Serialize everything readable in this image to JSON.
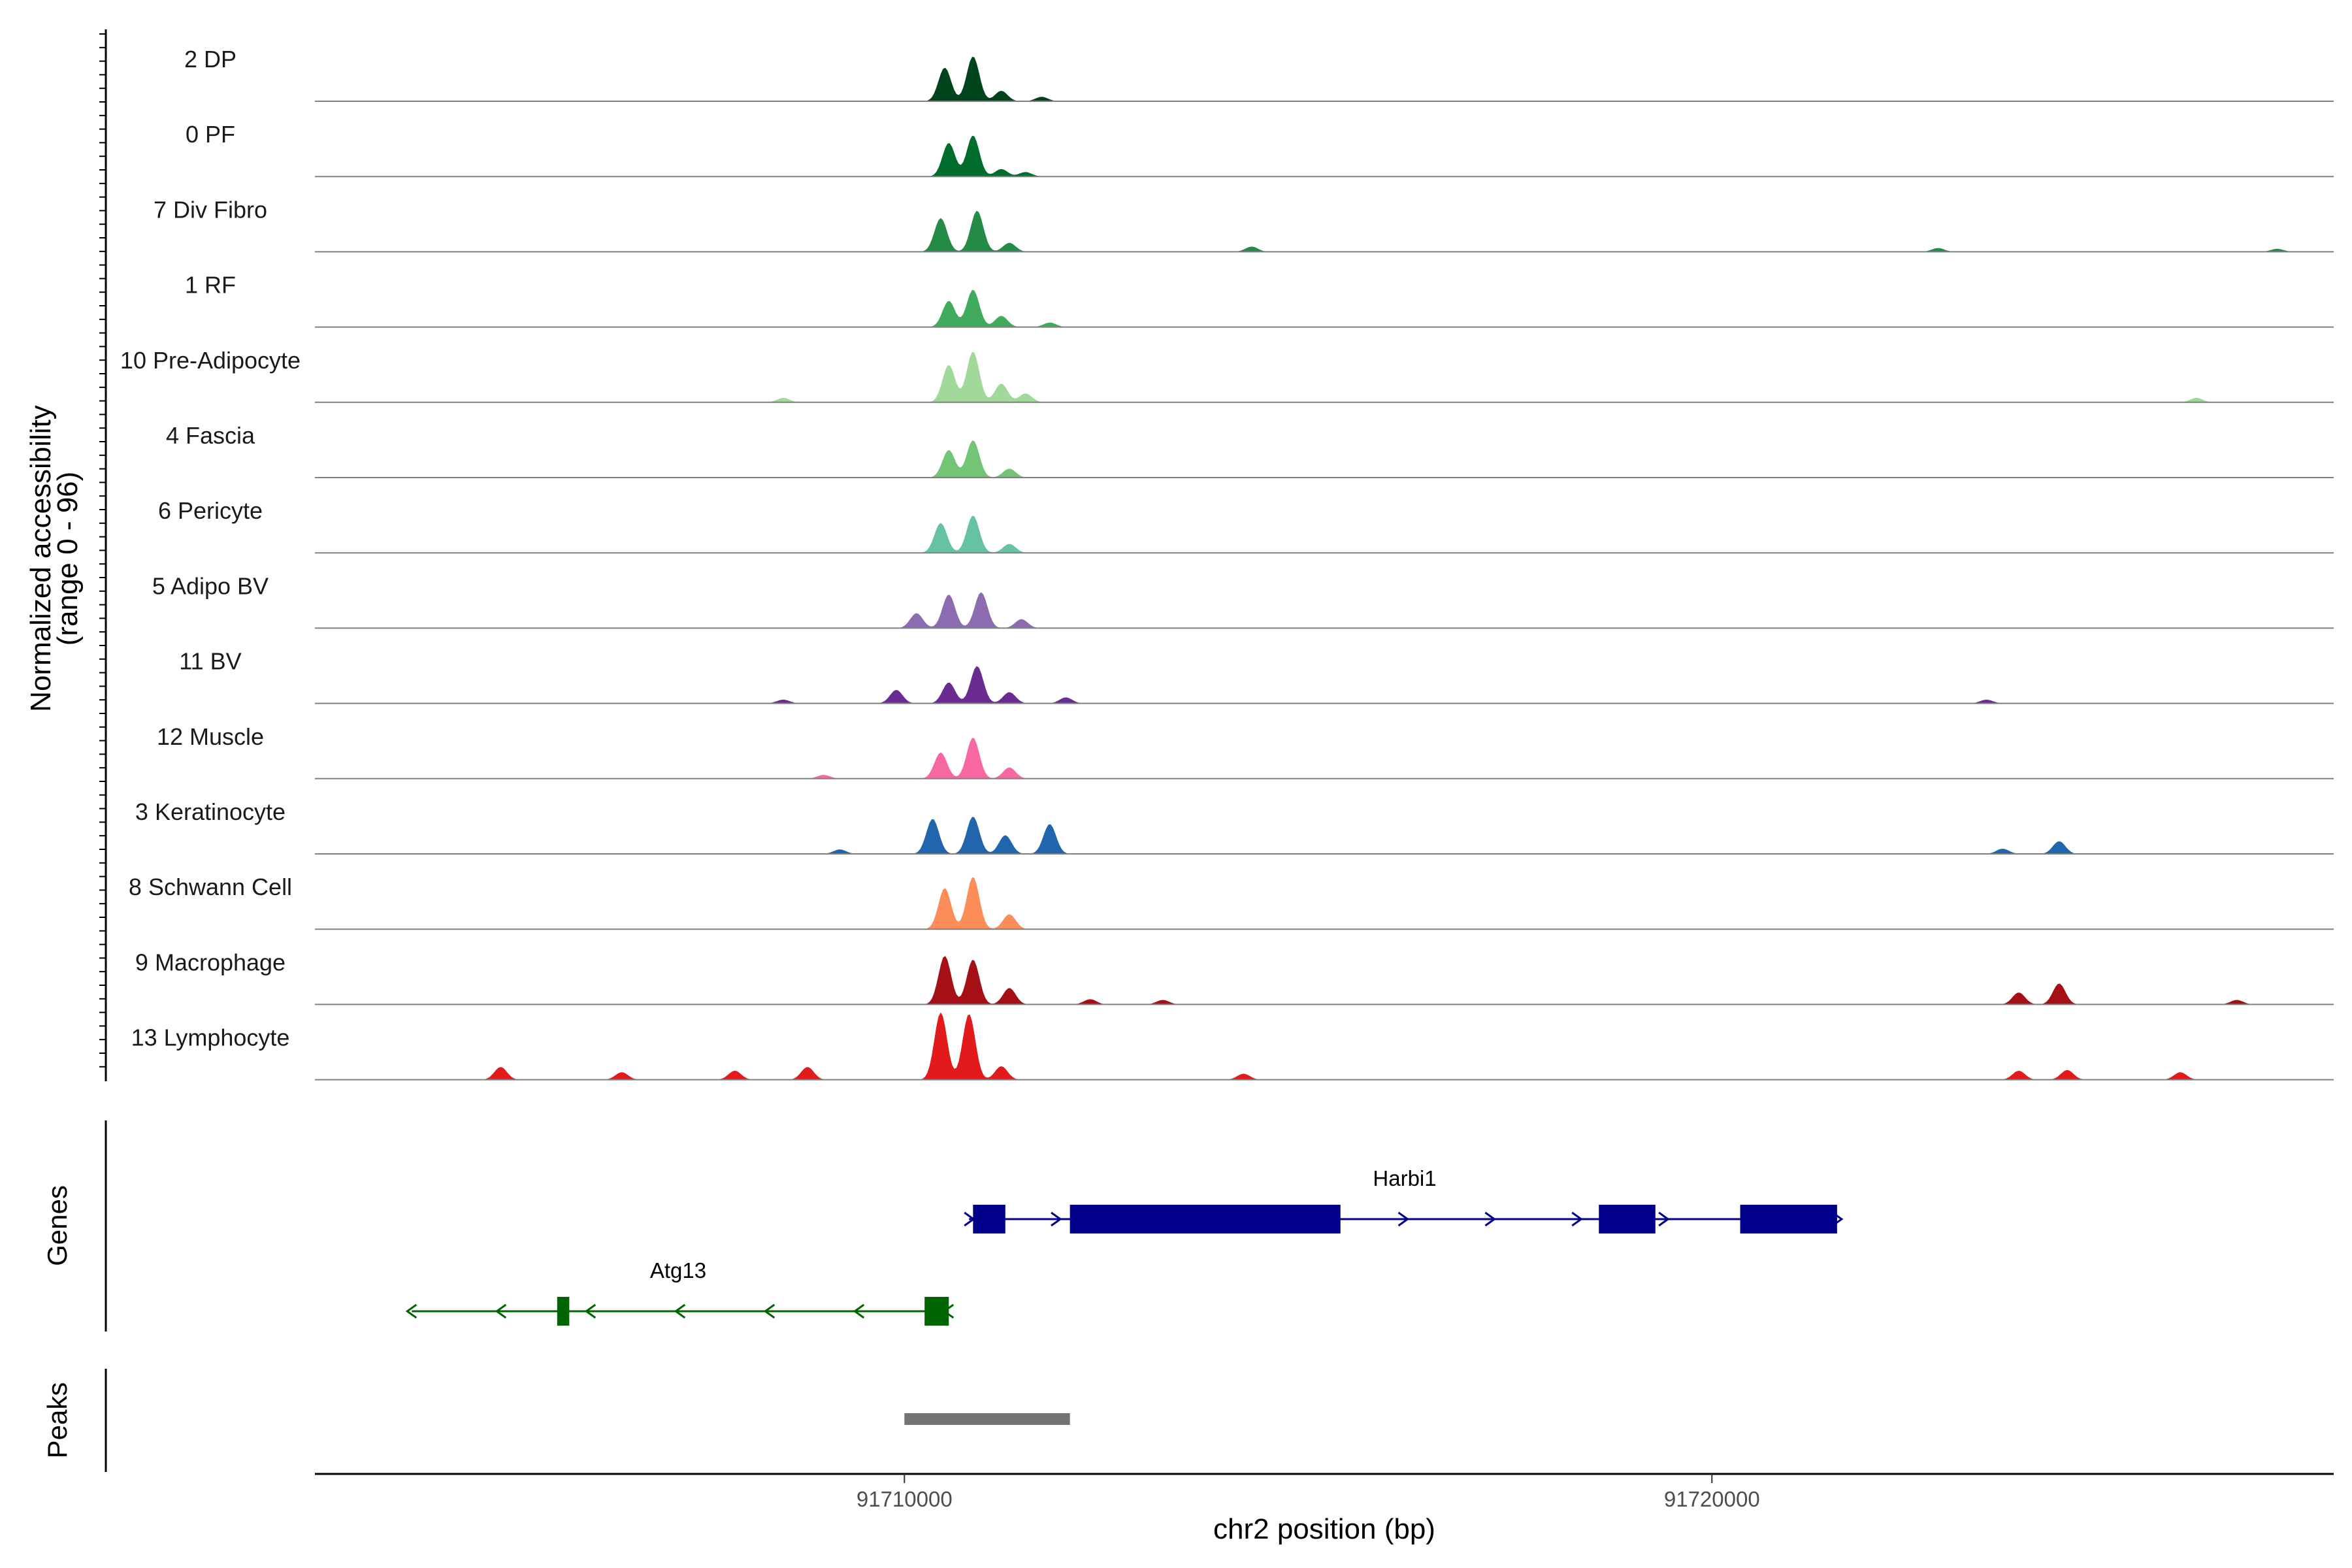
{
  "chart_data": {
    "type": "area",
    "title": "",
    "region": "chr2",
    "xlabel": "chr2 position (bp)",
    "ylabel": "Normalized accessibility",
    "ylabel_range": "(range 0 - 96)",
    "ylim": [
      0,
      96
    ],
    "xlim": [
      91702700,
      91727700
    ],
    "xticks": [
      91710000,
      91720000
    ],
    "xtick_labels": [
      "91710000",
      "91720000"
    ],
    "panel_labels": {
      "genes": "Genes",
      "peaks": "Peaks"
    },
    "tracks": [
      {
        "name": "2 DP",
        "color": "#00441b",
        "peaks": [
          [
            91710500,
            45
          ],
          [
            91710850,
            60
          ],
          [
            91711200,
            14
          ],
          [
            91711700,
            6
          ]
        ]
      },
      {
        "name": "0 PF",
        "color": "#006d2c",
        "peaks": [
          [
            91710550,
            45
          ],
          [
            91710850,
            55
          ],
          [
            91711200,
            10
          ],
          [
            91711500,
            6
          ]
        ]
      },
      {
        "name": "7 Div Fibro",
        "color": "#238b45",
        "peaks": [
          [
            91710450,
            45
          ],
          [
            91710900,
            55
          ],
          [
            91711300,
            12
          ],
          [
            91714300,
            7
          ],
          [
            91722800,
            5
          ],
          [
            91727000,
            4
          ]
        ]
      },
      {
        "name": "1 RF",
        "color": "#41ab5d",
        "peaks": [
          [
            91710550,
            35
          ],
          [
            91710850,
            50
          ],
          [
            91711200,
            15
          ],
          [
            91711800,
            6
          ]
        ]
      },
      {
        "name": "10 Pre-Adipocyte",
        "color": "#a1d99b",
        "peaks": [
          [
            91710550,
            50
          ],
          [
            91710850,
            68
          ],
          [
            91711200,
            25
          ],
          [
            91711500,
            12
          ],
          [
            91708500,
            6
          ],
          [
            91726000,
            6
          ]
        ]
      },
      {
        "name": "4 Fascia",
        "color": "#74c476",
        "peaks": [
          [
            91710550,
            37
          ],
          [
            91710850,
            50
          ],
          [
            91711300,
            12
          ]
        ]
      },
      {
        "name": "6 Pericyte",
        "color": "#66c2a4",
        "peaks": [
          [
            91710450,
            40
          ],
          [
            91710850,
            50
          ],
          [
            91711300,
            12
          ]
        ]
      },
      {
        "name": "5 Adipo BV",
        "color": "#8c6bb1",
        "peaks": [
          [
            91710150,
            20
          ],
          [
            91710550,
            45
          ],
          [
            91710950,
            48
          ],
          [
            91711450,
            12
          ]
        ]
      },
      {
        "name": "11 BV",
        "color": "#6a2c91",
        "peaks": [
          [
            91709900,
            18
          ],
          [
            91710550,
            28
          ],
          [
            91710900,
            50
          ],
          [
            91711300,
            15
          ],
          [
            91712000,
            8
          ],
          [
            91708500,
            5
          ],
          [
            91723400,
            5
          ]
        ]
      },
      {
        "name": "12 Muscle",
        "color": "#f768a1",
        "peaks": [
          [
            91710450,
            35
          ],
          [
            91710850,
            55
          ],
          [
            91711300,
            15
          ],
          [
            91709000,
            5
          ]
        ]
      },
      {
        "name": "3 Keratinocyte",
        "color": "#2166ac",
        "peaks": [
          [
            91710350,
            47
          ],
          [
            91710850,
            50
          ],
          [
            91711250,
            25
          ],
          [
            91711800,
            40
          ],
          [
            91709200,
            6
          ],
          [
            91723600,
            7
          ],
          [
            91724300,
            17
          ]
        ]
      },
      {
        "name": "8 Schwann Cell",
        "color": "#fc8d59",
        "peaks": [
          [
            91710500,
            55
          ],
          [
            91710850,
            70
          ],
          [
            91711300,
            20
          ]
        ]
      },
      {
        "name": "9 Macrophage",
        "color": "#a50f15",
        "peaks": [
          [
            91710500,
            65
          ],
          [
            91710850,
            60
          ],
          [
            91711300,
            22
          ],
          [
            91712300,
            7
          ],
          [
            91713200,
            6
          ],
          [
            91723800,
            16
          ],
          [
            91724300,
            28
          ],
          [
            91726500,
            6
          ]
        ]
      },
      {
        "name": "13 Lymphocyte",
        "color": "#e31a1c",
        "peaks": [
          [
            91710450,
            90
          ],
          [
            91710800,
            88
          ],
          [
            91711200,
            18
          ],
          [
            91705000,
            17
          ],
          [
            91706500,
            10
          ],
          [
            91707900,
            12
          ],
          [
            91708800,
            17
          ],
          [
            91714200,
            8
          ],
          [
            91723800,
            12
          ],
          [
            91724400,
            13
          ],
          [
            91725800,
            10
          ]
        ]
      }
    ],
    "genes": [
      {
        "name": "Harbi1",
        "color": "#00008b",
        "strand": "+",
        "start": 91710800,
        "end": 91721550,
        "exons": [
          [
            91710850,
            91711250
          ],
          [
            91712050,
            91715400
          ],
          [
            91718600,
            91719300
          ],
          [
            91720350,
            91721550
          ]
        ]
      },
      {
        "name": "Atg13",
        "color": "#006400",
        "strand": "-",
        "start": 91703900,
        "end": 91710550,
        "exons": [
          [
            91705700,
            91705850
          ],
          [
            91710250,
            91710550
          ]
        ]
      }
    ],
    "peak_regions": [
      {
        "start": 91710000,
        "end": 91712050,
        "color": "#737373"
      }
    ]
  }
}
